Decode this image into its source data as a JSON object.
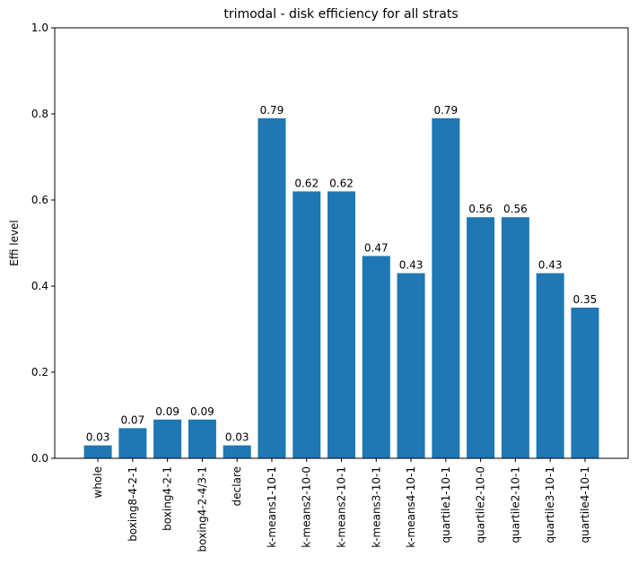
{
  "chart_data": {
    "type": "bar",
    "title": "trimodal - disk efficiency for all strats",
    "xlabel": "",
    "ylabel": "Effi level",
    "ylim": [
      0,
      1.0
    ],
    "yticks": [
      0.0,
      0.2,
      0.4,
      0.6,
      0.8,
      1.0
    ],
    "ytick_labels": [
      "0.0",
      "0.2",
      "0.4",
      "0.6",
      "0.8",
      "1.0"
    ],
    "grid": false,
    "bar_color": "#1f77b4",
    "categories": [
      "whole",
      "boxing8-4-2-1",
      "boxing4-2-1",
      "boxing4-2-4/3-1",
      "declare",
      "k-means1-10-1",
      "k-means2-10-0",
      "k-means2-10-1",
      "k-means3-10-1",
      "k-means4-10-1",
      "quartile1-10-1",
      "quartile2-10-0",
      "quartile2-10-1",
      "quartile3-10-1",
      "quartile4-10-1"
    ],
    "values": [
      0.03,
      0.07,
      0.09,
      0.09,
      0.03,
      0.79,
      0.62,
      0.62,
      0.47,
      0.43,
      0.79,
      0.56,
      0.56,
      0.43,
      0.35
    ],
    "value_labels": [
      "0.03",
      "0.07",
      "0.09",
      "0.09",
      "0.03",
      "0.79",
      "0.62",
      "0.62",
      "0.47",
      "0.43",
      "0.79",
      "0.56",
      "0.56",
      "0.43",
      "0.35"
    ]
  }
}
